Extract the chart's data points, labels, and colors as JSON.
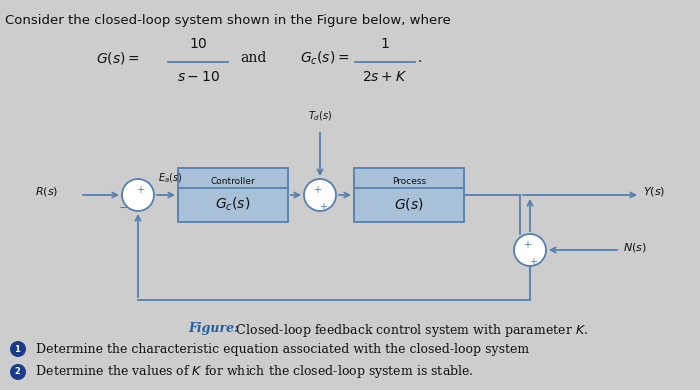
{
  "bg_color": "#cdcdcd",
  "title_text": "Consider the closed-loop system shown in the Figure below, where",
  "controller_label": "Controller",
  "process_label": "Process",
  "Gc_label": "$G_c(s)$",
  "Gs_label": "$G(s)$",
  "Rs_label": "$R(s)$",
  "Ys_label": "$Y(s)$",
  "Ns_label": "$N(s)$",
  "Es_label": "$E_a(s)$",
  "Td_label": "$T_d(s)$",
  "figure_caption_bold": "Figure:",
  "figure_caption_rest": " Closed-loop feedback control system with parameter $K$.",
  "bullet1": " Determine the characteristic equation associated with the closed-loop system",
  "bullet2": " Determine the values of $K$ for which the closed-loop system is stable.",
  "bullet1_num": "1",
  "bullet2_num": "2",
  "bullet_color": "#1a3a8a",
  "diagram_color": "#5580b0",
  "box_fill": "#a8c0d8",
  "text_color": "#111111",
  "caption_bold_color": "#2060a0",
  "caption_rest_color": "#111111",
  "white": "#ffffff"
}
